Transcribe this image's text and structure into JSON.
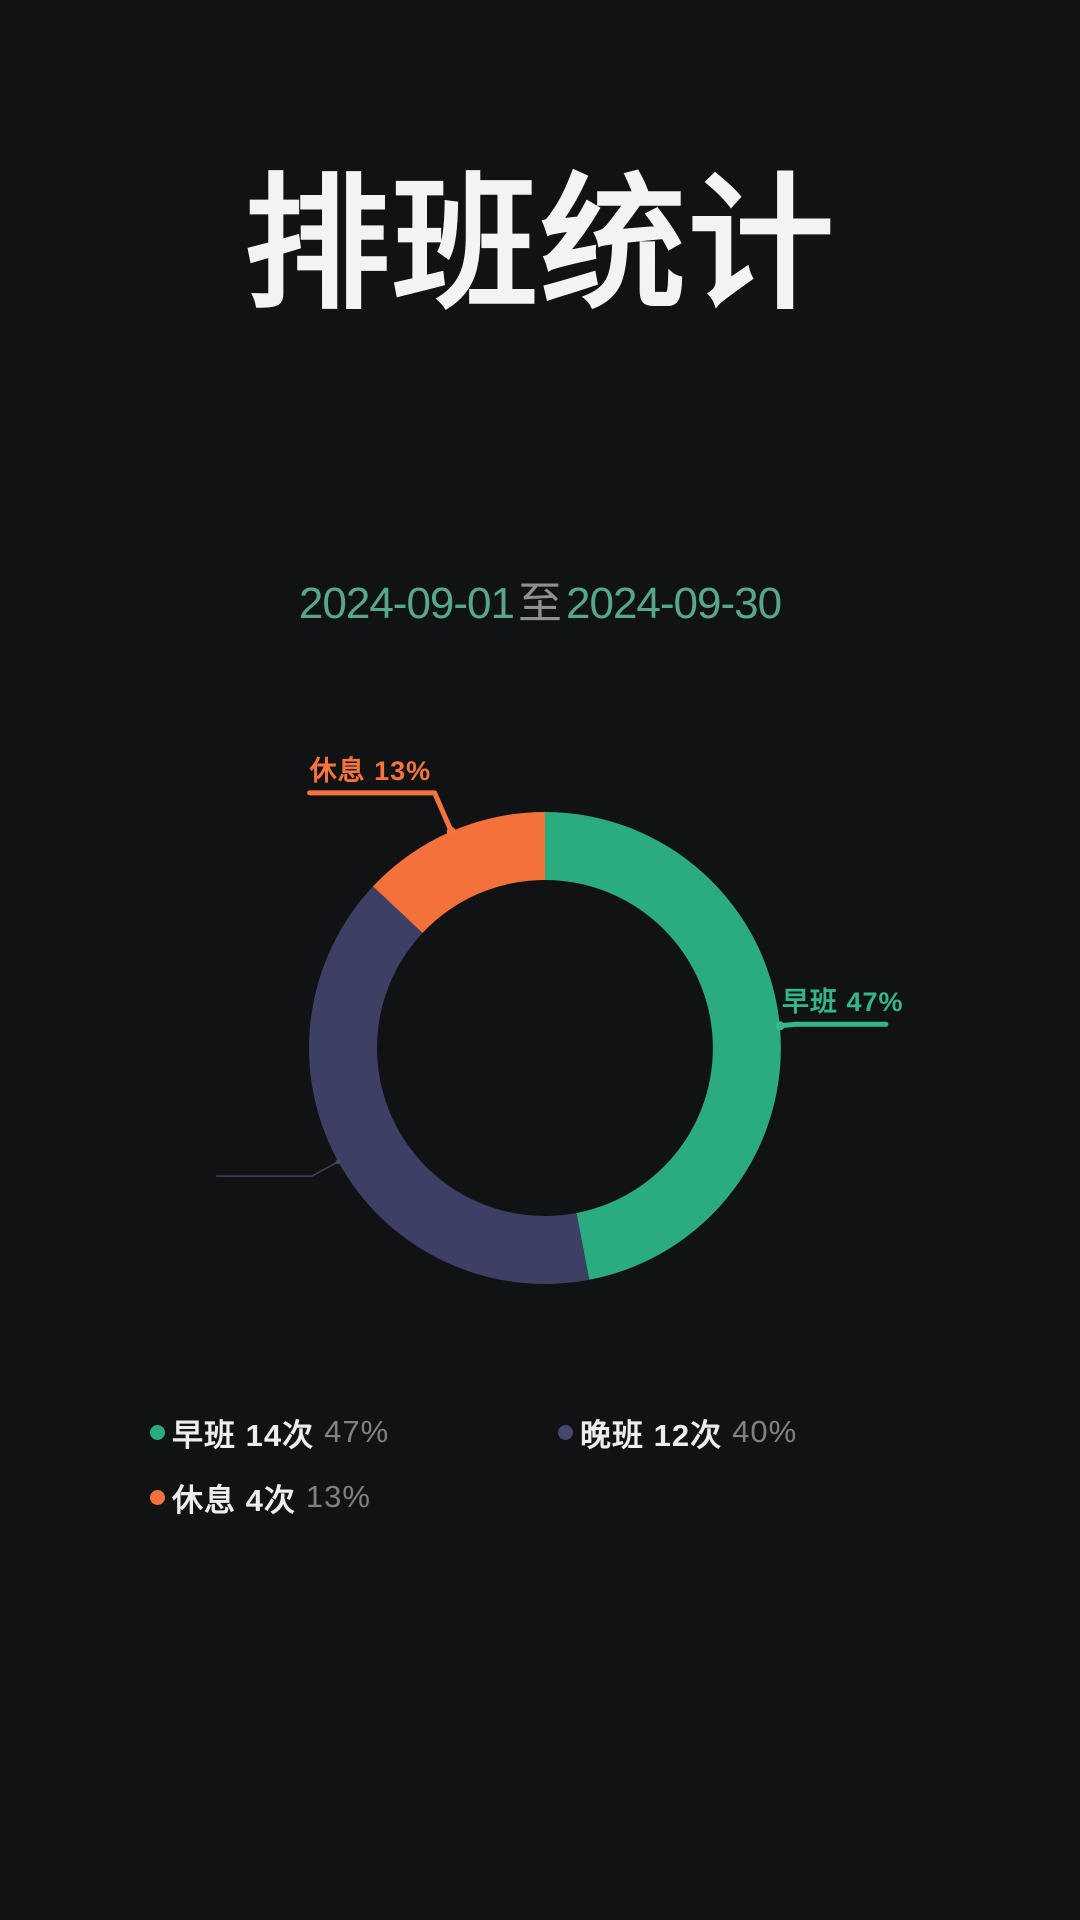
{
  "title": "排班统计",
  "date_range": {
    "start": "2024-09-01",
    "separator": "至",
    "end": "2024-09-30"
  },
  "chart_data": {
    "type": "pie",
    "subtype": "donut",
    "title": "排班统计",
    "period": "2024-09-01至2024-09-30",
    "start_angle_deg": 0,
    "direction": "clockwise",
    "legend_position": "bottom",
    "series": [
      {
        "id": "morning-shift",
        "name": "早班",
        "count": 14,
        "count_label": "14次",
        "percent": 47,
        "color": "#2BAB80"
      },
      {
        "id": "night-shift",
        "name": "晚班",
        "count": 12,
        "count_label": "12次",
        "percent": 40,
        "color": "#3D3F64"
      },
      {
        "id": "rest",
        "name": "休息",
        "count": 4,
        "count_label": "4次",
        "percent": 13,
        "color": "#F5713C"
      }
    ],
    "callouts": [
      {
        "id": "morning-shift",
        "series": "早班",
        "text": "早班 47%",
        "side": "right",
        "color": "#32B78B",
        "l1": 16,
        "l2": 90,
        "dim": false
      },
      {
        "id": "rest",
        "series": "休息",
        "text": "休息 13%",
        "side": "left",
        "color": "#F8743F",
        "l1": 42,
        "l2": 125,
        "dim": false
      },
      {
        "id": "night-shift",
        "series": "晚班",
        "text": "",
        "side": "left",
        "color": "#4A4C6E",
        "l1": 30,
        "l2": 95,
        "dim": true
      }
    ]
  },
  "legend": {
    "items": [
      {
        "id": "morning-shift",
        "label": "早班 14次",
        "percent": "47%",
        "color": "#2BAB80"
      },
      {
        "id": "night-shift",
        "label": "晚班 12次",
        "percent": "40%",
        "color": "#45476F"
      },
      {
        "id": "rest",
        "label": "休息 4次",
        "percent": "13%",
        "color": "#F5713C"
      }
    ]
  },
  "colors": {
    "background": "#111213",
    "title_text": "#F3F3F3",
    "date_text": "#57A88B",
    "date_separator_text": "#8E9092",
    "legend_label_text": "#EDEDED",
    "legend_percent_text": "#7F8184"
  }
}
